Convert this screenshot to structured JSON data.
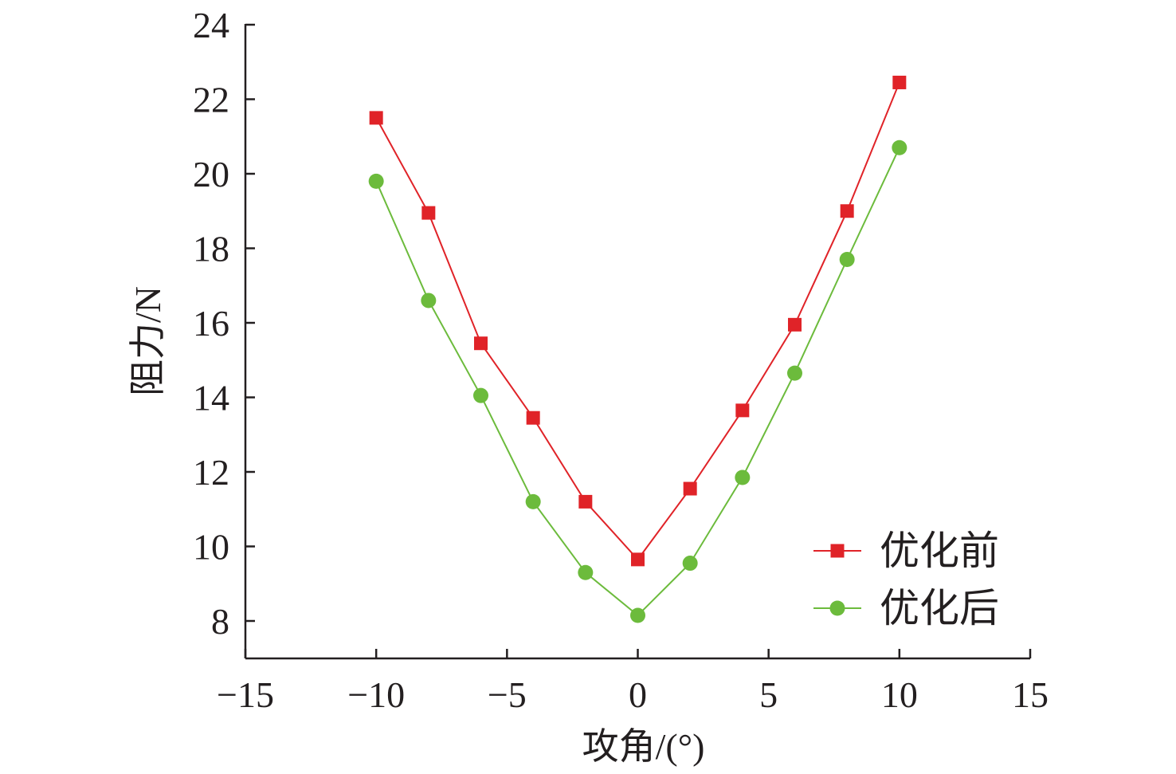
{
  "chart_data": {
    "type": "line",
    "xlabel": "攻角/(°)",
    "ylabel": "阻力/N",
    "xlim": [
      -15,
      15
    ],
    "ylim": [
      7,
      24
    ],
    "xticks": [
      -15,
      -10,
      -5,
      0,
      5,
      10,
      15
    ],
    "xtick_labels": [
      "−15",
      "−10",
      "−5",
      "0",
      "5",
      "10",
      "15"
    ],
    "yticks": [
      8,
      10,
      12,
      14,
      16,
      18,
      20,
      22,
      24
    ],
    "ytick_labels": [
      "8",
      "10",
      "12",
      "14",
      "16",
      "18",
      "20",
      "22",
      "24"
    ],
    "x": [
      -10,
      -8,
      -6,
      -4,
      -2,
      0,
      2,
      4,
      6,
      8,
      10
    ],
    "series": [
      {
        "name": "优化前",
        "marker": "square",
        "color": "#e02328",
        "values": [
          21.5,
          18.95,
          15.45,
          13.45,
          11.2,
          9.65,
          11.55,
          13.65,
          15.95,
          19.0,
          22.45
        ]
      },
      {
        "name": "优化后",
        "marker": "circle",
        "color": "#6cbb3c",
        "values": [
          19.8,
          16.6,
          14.05,
          11.2,
          9.3,
          8.15,
          9.55,
          11.85,
          14.65,
          17.7,
          20.7
        ]
      }
    ],
    "grid": false,
    "legend_position": "bottom-right"
  }
}
